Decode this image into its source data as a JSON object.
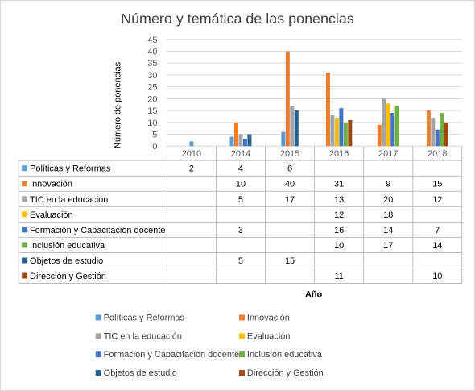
{
  "chart_data": {
    "type": "bar",
    "title": "Número y temática de las ponencias",
    "xlabel": "Año",
    "ylabel": "Número  de ponencias",
    "ylim": [
      0,
      45
    ],
    "yticks": [
      "0",
      "5",
      "10",
      "15",
      "20",
      "25",
      "30",
      "35",
      "40",
      "45"
    ],
    "categories": [
      "2010",
      "2014",
      "2015",
      "2016",
      "2017",
      "2018"
    ],
    "grid": true,
    "legend_position": "bottom",
    "data_table": true,
    "series": [
      {
        "name": "Políticas y Reformas",
        "color": "#5b9bd5",
        "values": [
          2,
          4,
          6,
          null,
          null,
          null
        ]
      },
      {
        "name": "Innovación",
        "color": "#ed7d31",
        "values": [
          null,
          10,
          40,
          31,
          9,
          15
        ]
      },
      {
        "name": "TIC en la educación",
        "color": "#a5a5a5",
        "values": [
          null,
          5,
          17,
          13,
          20,
          12
        ]
      },
      {
        "name": "Evaluación",
        "color": "#ffc000",
        "values": [
          null,
          null,
          null,
          12,
          18,
          null
        ]
      },
      {
        "name": "Formación y Capacitación docente",
        "color": "#4472c4",
        "values": [
          null,
          3,
          null,
          16,
          14,
          7
        ]
      },
      {
        "name": "Inclusión educativa",
        "color": "#70ad47",
        "values": [
          null,
          null,
          null,
          10,
          17,
          14
        ]
      },
      {
        "name": "Objetos de estudio",
        "color": "#255e91",
        "values": [
          null,
          5,
          15,
          null,
          null,
          null
        ]
      },
      {
        "name": "Dirección y Gestión",
        "color": "#9e480e",
        "values": [
          null,
          null,
          null,
          11,
          null,
          10
        ]
      }
    ]
  }
}
